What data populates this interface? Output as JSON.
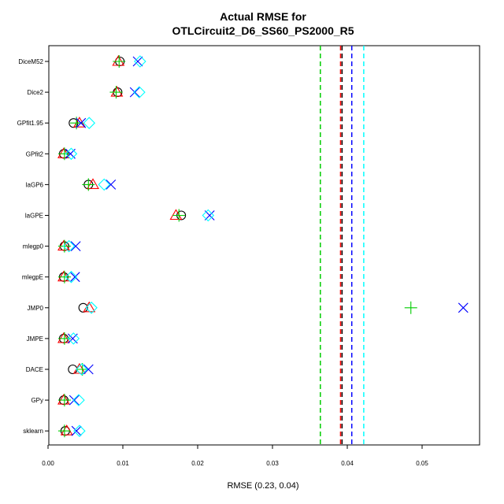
{
  "chart_data": {
    "type": "scatter",
    "title_line1": "Actual RMSE for",
    "title_line2": "OTLCircuit2_D6_SS60_PS2000_R5",
    "xlabel": "RMSE (0.23, 0.04)",
    "xlim": [
      0,
      0.0575
    ],
    "x_ticks": [
      "0.00",
      "0.01",
      "0.02",
      "0.03",
      "0.04",
      "0.05"
    ],
    "x_tick_values": [
      0,
      0.01,
      0.02,
      0.03,
      0.04,
      0.05
    ],
    "categories": [
      "DiceM52",
      "Dice2",
      "GPfit1.95",
      "GPfit2",
      "laGP6",
      "laGPE",
      "mlegp0",
      "mlegpE",
      "JMP0",
      "JMPE",
      "DACE",
      "GPy",
      "sklearn"
    ],
    "series": [
      {
        "marker": "circle",
        "color": "#000000",
        "values": [
          0.0096,
          0.0093,
          0.0034,
          0.0021,
          0.0054,
          0.0178,
          0.0022,
          0.0021,
          0.0047,
          0.0021,
          0.0033,
          0.0021,
          0.0023
        ]
      },
      {
        "marker": "triangle",
        "color": "#ff0000",
        "values": [
          0.0094,
          0.0092,
          0.0042,
          0.0021,
          0.006,
          0.0171,
          0.0021,
          0.0021,
          0.0055,
          0.0021,
          0.0042,
          0.0021,
          0.0025
        ]
      },
      {
        "marker": "plus",
        "color": "#00cc00",
        "values": [
          0.0095,
          0.0091,
          0.0038,
          0.0022,
          0.0054,
          0.0175,
          0.0022,
          0.0022,
          0.0485,
          0.0022,
          0.0046,
          0.0022,
          0.0022
        ]
      },
      {
        "marker": "cross",
        "color": "#0000ff",
        "values": [
          0.012,
          0.0116,
          0.0044,
          0.003,
          0.0084,
          0.0216,
          0.0037,
          0.0036,
          0.0555,
          0.0033,
          0.0054,
          0.0035,
          0.0038
        ]
      },
      {
        "marker": "diamond",
        "color": "#00ffff",
        "values": [
          0.0123,
          0.0122,
          0.0055,
          0.0031,
          0.0075,
          0.0214,
          0.0028,
          0.0031,
          0.0058,
          0.0034,
          0.0045,
          0.0041,
          0.0042
        ]
      }
    ],
    "vlines": [
      {
        "value": 0.0364,
        "color": "#00cc00"
      },
      {
        "value": 0.0391,
        "color": "#ff0000"
      },
      {
        "value": 0.0393,
        "color": "#000000"
      },
      {
        "value": 0.0406,
        "color": "#0000ff"
      },
      {
        "value": 0.0422,
        "color": "#00ffff"
      }
    ],
    "legend": "none",
    "grid": false
  }
}
